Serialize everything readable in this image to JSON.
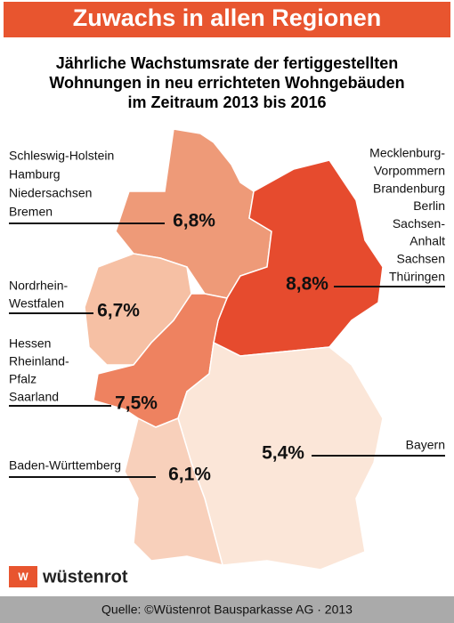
{
  "header": {
    "title": "Zuwachs in allen Regionen"
  },
  "subtitle": [
    "Jährliche Wachstumsrate der fertiggestellten",
    "Wohnungen in neu errichteten Wohngebäuden",
    "im Zeitraum 2013 bis 2016"
  ],
  "regions": [
    {
      "labels": [
        "Schleswig-Holstein",
        "Hamburg",
        "Niedersachsen",
        "Bremen"
      ],
      "value": "6,8%"
    },
    {
      "labels": [
        "Nordrhein-",
        "Westfalen"
      ],
      "value": "6,7%"
    },
    {
      "labels": [
        "Hessen",
        "Rheinland-",
        "Pfalz",
        "Saarland"
      ],
      "value": "7,5%"
    },
    {
      "labels": [
        "Baden-Württemberg"
      ],
      "value": "6,1%"
    },
    {
      "labels": [
        "Mecklenburg-",
        "Vorpommern",
        "Brandenburg",
        "Berlin",
        "Sachsen-",
        "Anhalt",
        "Sachsen",
        "Thüringen"
      ],
      "value": "8,8%"
    },
    {
      "labels": [
        "Bayern"
      ],
      "value": "5,4%"
    }
  ],
  "logo": "wüstenrot",
  "footer": {
    "source": "Quelle: ©Wüstenrot Bausparkasse AG · 2013"
  }
}
